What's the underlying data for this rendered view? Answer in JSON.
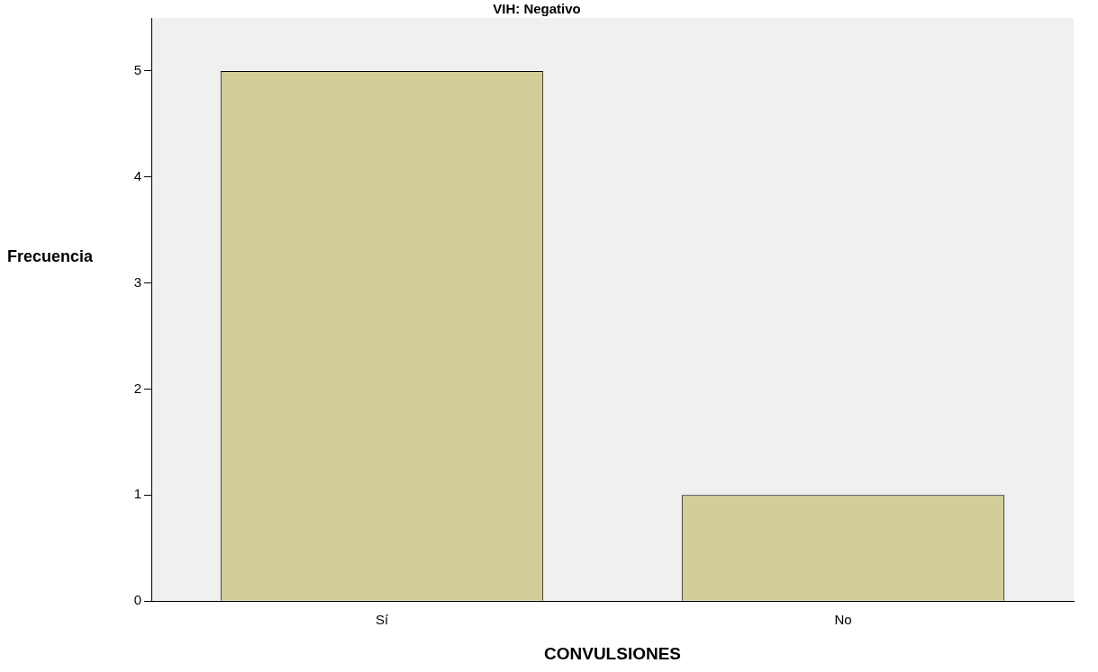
{
  "chart_data": {
    "type": "bar",
    "title": "VIH: Negativo",
    "xlabel": "CONVULSIONES",
    "ylabel": "Frecuencia",
    "categories": [
      "Sí",
      "No"
    ],
    "values": [
      5,
      1
    ],
    "color": "#d3ce98",
    "ylim": [
      0,
      5.5
    ],
    "yticks": [
      0,
      1,
      2,
      3,
      4,
      5
    ]
  }
}
